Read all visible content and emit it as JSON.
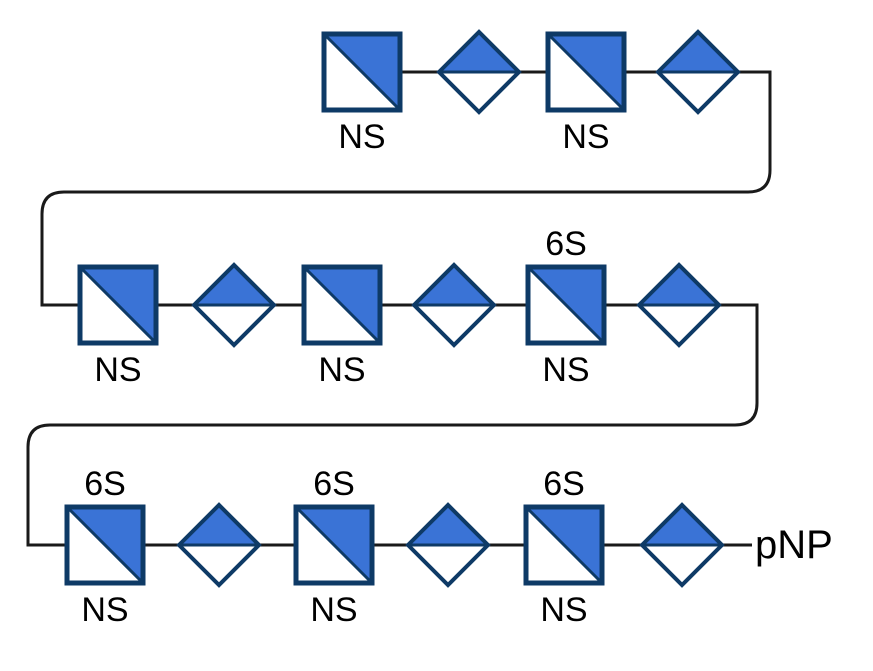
{
  "colors": {
    "fill": "#3a73d6",
    "stroke": "#0e3a66",
    "link": "#1a1a1a",
    "background": "#ffffff"
  },
  "chain": {
    "end_label": "pNP",
    "rows": [
      {
        "units": [
          {
            "type": "square",
            "below": "NS",
            "above": ""
          },
          {
            "type": "diamond"
          },
          {
            "type": "square",
            "below": "NS",
            "above": ""
          },
          {
            "type": "diamond"
          }
        ]
      },
      {
        "units": [
          {
            "type": "square",
            "below": "NS",
            "above": ""
          },
          {
            "type": "diamond"
          },
          {
            "type": "square",
            "below": "NS",
            "above": ""
          },
          {
            "type": "diamond"
          },
          {
            "type": "square",
            "below": "NS",
            "above": "6S"
          },
          {
            "type": "diamond"
          }
        ]
      },
      {
        "units": [
          {
            "type": "square",
            "below": "NS",
            "above": "6S"
          },
          {
            "type": "diamond"
          },
          {
            "type": "square",
            "below": "NS",
            "above": "6S"
          },
          {
            "type": "diamond"
          },
          {
            "type": "square",
            "below": "NS",
            "above": "6S"
          },
          {
            "type": "diamond"
          }
        ]
      }
    ]
  }
}
